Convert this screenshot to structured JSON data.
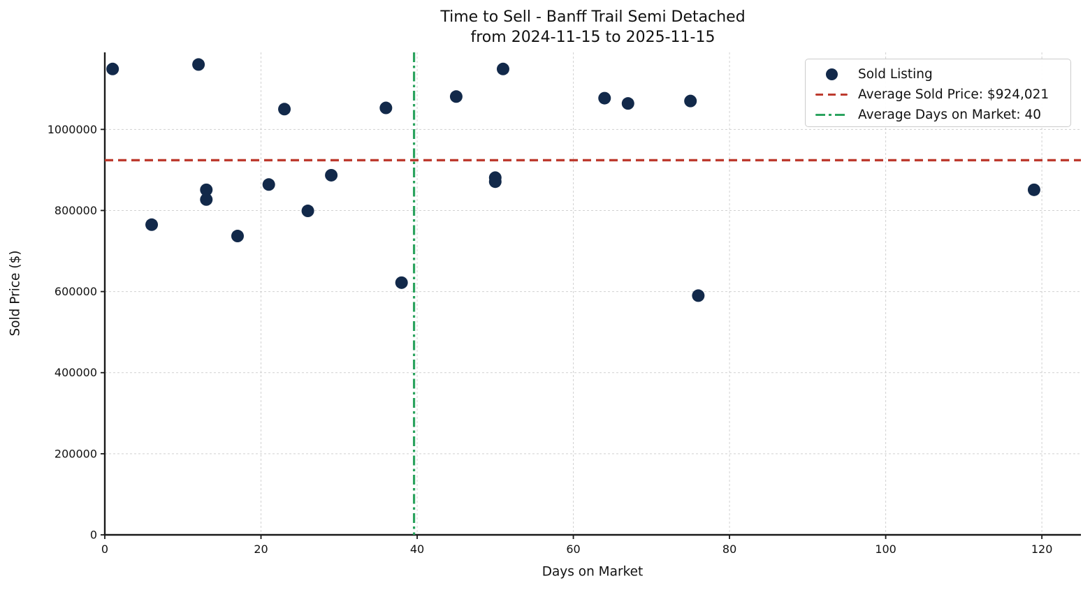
{
  "title": {
    "line1": "Time to Sell - Banff Trail Semi Detached",
    "line2": "from 2024-11-15 to 2025-11-15"
  },
  "chart_data": {
    "type": "scatter",
    "title": "Time to Sell - Banff Trail Semi Detached\nfrom 2024-11-15 to 2025-11-15",
    "xlabel": "Days on Market",
    "ylabel": "Sold Price ($)",
    "xlim": [
      0,
      125
    ],
    "ylim": [
      0,
      1190000
    ],
    "x_ticks": [
      0,
      20,
      40,
      60,
      80,
      100,
      120
    ],
    "y_ticks": [
      0,
      200000,
      400000,
      600000,
      800000,
      1000000
    ],
    "grid": true,
    "series": [
      {
        "name": "Sold Listing",
        "points": [
          [
            1,
            1149000
          ],
          [
            6,
            765000
          ],
          [
            12,
            1160000
          ],
          [
            13,
            851000
          ],
          [
            13,
            827000
          ],
          [
            17,
            737000
          ],
          [
            21,
            864000
          ],
          [
            23,
            1050000
          ],
          [
            26,
            799000
          ],
          [
            29,
            887000
          ],
          [
            36,
            1053000
          ],
          [
            38,
            622000
          ],
          [
            45,
            1081000
          ],
          [
            50,
            881000
          ],
          [
            50,
            871000
          ],
          [
            51,
            1149000
          ],
          [
            64,
            1077000
          ],
          [
            67,
            1064000
          ],
          [
            75,
            1070000
          ],
          [
            76,
            590000
          ],
          [
            119,
            851000
          ]
        ]
      }
    ],
    "avg_sold_price": {
      "value": 924021,
      "label": "Average Sold Price: $924,021"
    },
    "avg_days_on_market": {
      "value": 39.6,
      "display": 40,
      "label": "Average Days on Market: 40"
    },
    "legend": {
      "position": "upper right",
      "items": [
        {
          "label": "Sold Listing",
          "swatch": "dot"
        },
        {
          "label": "Average Sold Price: $924,021",
          "swatch": "dashed-line"
        },
        {
          "label": "Average Days on Market: 40",
          "swatch": "dashdot-line"
        }
      ]
    }
  },
  "colors": {
    "point": "#12294a",
    "avg_price_line": "#bd3a2e",
    "avg_days_line": "#2ca35f",
    "grid": "#c9c9c9",
    "axis": "#1a1a1a",
    "text": "#111111",
    "legend_border": "#cccccc"
  }
}
